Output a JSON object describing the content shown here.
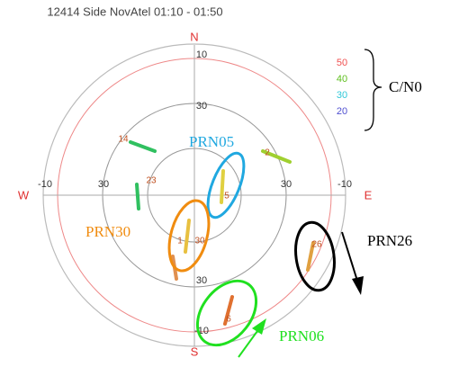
{
  "title": "12414 Side NovAtel 01:10 - 01:50",
  "compass": {
    "n": "N",
    "s": "S",
    "w": "W",
    "e": "E"
  },
  "elevation_labels": [
    "10",
    "30",
    "-10",
    "30",
    "-10",
    "30",
    "30",
    "-10"
  ],
  "legend": {
    "items": [
      "50",
      "40",
      "30",
      "20"
    ],
    "title": "C/N0"
  },
  "satellites": [
    "14",
    "23",
    "2",
    "5",
    "1",
    "30",
    "26",
    "6"
  ],
  "annotations": [
    "PRN05",
    "PRN30",
    "PRN26",
    "PRN06"
  ]
}
